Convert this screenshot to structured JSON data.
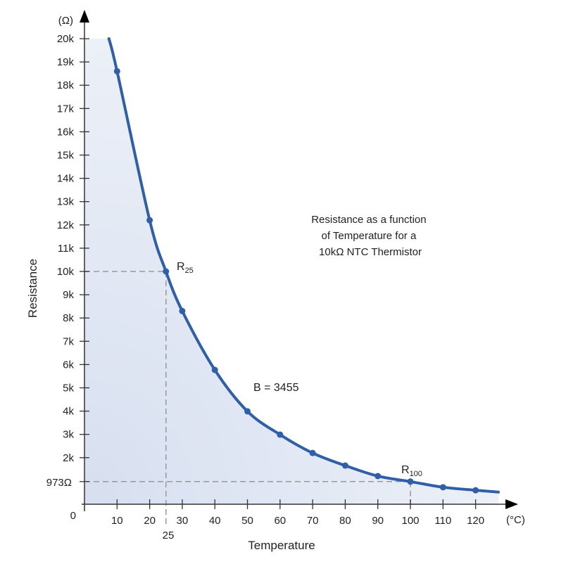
{
  "chart_data": {
    "type": "line",
    "title": "Resistance as a function of Temperature for a 10kΩ NTC Thermistor",
    "title_lines": [
      "Resistance as a function",
      "of Temperature for a",
      "10kΩ NTC Thermistor"
    ],
    "xlabel": "Temperature",
    "ylabel": "Resistance",
    "x_unit": "(°C)",
    "y_unit": "(Ω)",
    "xlim": [
      0,
      130
    ],
    "ylim": [
      0,
      21000
    ],
    "x_ticks": [
      10,
      20,
      30,
      40,
      50,
      60,
      70,
      80,
      90,
      100,
      110,
      120
    ],
    "x_tick_labels": [
      "10",
      "20",
      "30",
      "40",
      "50",
      "60",
      "70",
      "80",
      "90",
      "100",
      "110",
      "120"
    ],
    "y_ticks": [
      2000,
      3000,
      4000,
      5000,
      6000,
      7000,
      8000,
      9000,
      10000,
      11000,
      12000,
      13000,
      14000,
      15000,
      16000,
      17000,
      18000,
      19000,
      20000
    ],
    "y_tick_labels": [
      "2k",
      "3k",
      "4k",
      "5k",
      "6k",
      "7k",
      "8k",
      "9k",
      "10k",
      "11k",
      "12k",
      "13k",
      "14k",
      "15k",
      "16k",
      "17k",
      "18k",
      "19k",
      "20k"
    ],
    "origin_label": "0",
    "series": [
      {
        "name": "10kΩ NTC Thermistor",
        "color": "#2f5fa8",
        "curve_x": [
          7.5,
          10,
          20,
          25,
          30,
          40,
          50,
          60,
          70,
          80,
          90,
          100,
          110,
          120,
          127
        ],
        "curve_y": [
          20000,
          18600,
          12200,
          10000,
          8300,
          5770,
          3990,
          2990,
          2200,
          1660,
          1210,
          973,
          730,
          600,
          520
        ],
        "marker_x": [
          10,
          20,
          25,
          30,
          40,
          50,
          60,
          70,
          80,
          90,
          100,
          110,
          120
        ],
        "marker_y": [
          18600,
          12200,
          10000,
          8300,
          5770,
          3990,
          2990,
          2200,
          1660,
          1210,
          973,
          730,
          600
        ]
      }
    ],
    "annotations": {
      "r25": {
        "label": "R",
        "sub": "25",
        "x": 25,
        "y": 10000,
        "x_label": "25"
      },
      "r100": {
        "label": "R",
        "sub": "100",
        "x": 100,
        "y": 973,
        "y_label": "973Ω"
      },
      "b_value": "B = 3455"
    },
    "grid": false
  }
}
